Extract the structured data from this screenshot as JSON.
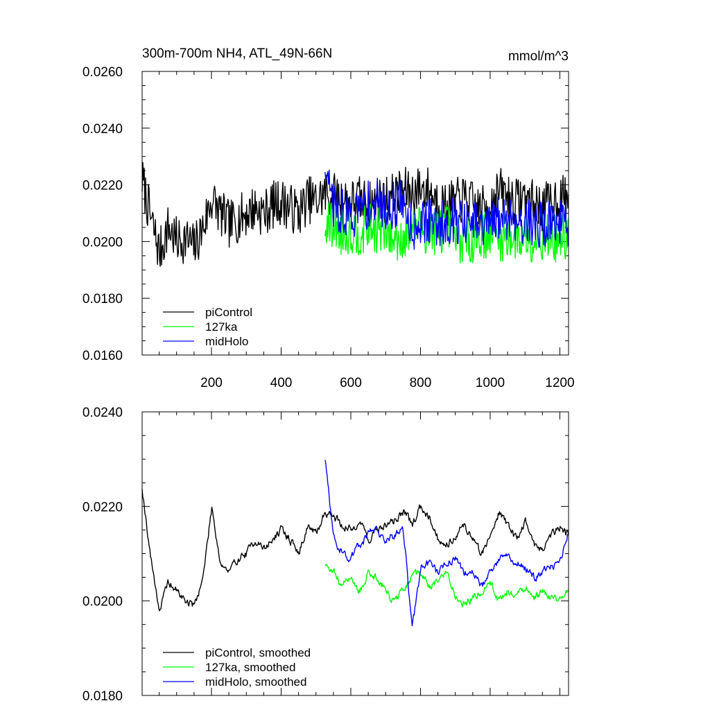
{
  "chart_data": [
    {
      "type": "line",
      "title": "300m-700m NH4, ATL_49N-66N",
      "units": "mmol/m^3",
      "xlabel": "",
      "ylabel": "",
      "xlim": [
        1,
        1225
      ],
      "ylim": [
        0.016,
        0.026
      ],
      "xticks": [
        200,
        400,
        600,
        800,
        1000,
        1200
      ],
      "xtick_labels": [
        "200",
        "400",
        "600",
        "800",
        "1000",
        "1200"
      ],
      "yticks": [
        0.016,
        0.018,
        0.02,
        0.022,
        0.024,
        0.026
      ],
      "ytick_labels": [
        "0.0160",
        "0.0180",
        "0.0200",
        "0.0220",
        "0.0240",
        "0.0260"
      ],
      "legend_position": "bottom-left",
      "series": [
        {
          "name": "piControl",
          "color": "#000000",
          "x_start": 1,
          "x_step": 25,
          "values": [
            0.0222,
            0.0208,
            0.0196,
            0.0205,
            0.02,
            0.0201,
            0.0198,
            0.0205,
            0.0215,
            0.021,
            0.0206,
            0.0208,
            0.021,
            0.0212,
            0.021,
            0.0213,
            0.0214,
            0.0212,
            0.021,
            0.0215,
            0.0214,
            0.0217,
            0.0216,
            0.0215,
            0.0214,
            0.0215,
            0.0213,
            0.0214,
            0.0215,
            0.0216,
            0.0218,
            0.0217,
            0.0219,
            0.0218,
            0.0214,
            0.0212,
            0.0214,
            0.0215,
            0.0213,
            0.0211,
            0.0214,
            0.0218,
            0.0216,
            0.0214,
            0.0216,
            0.0213,
            0.0212,
            0.0214,
            0.0216,
            0.0214
          ]
        },
        {
          "name": "127ka",
          "color": "#00ff00",
          "x_start": 526,
          "x_step": 25,
          "values": [
            0.0205,
            0.0206,
            0.0203,
            0.0204,
            0.0203,
            0.0205,
            0.0204,
            0.0203,
            0.0201,
            0.0202,
            0.0204,
            0.0205,
            0.0203,
            0.0204,
            0.0205,
            0.0202,
            0.02,
            0.0201,
            0.0202,
            0.0203,
            0.0201,
            0.0202,
            0.0201,
            0.0202,
            0.0201,
            0.0202,
            0.0201,
            0.0201,
            0.0202
          ]
        },
        {
          "name": "midHolo",
          "color": "#0000ff",
          "x_start": 526,
          "x_step": 25,
          "values": [
            0.0225,
            0.0212,
            0.021,
            0.0209,
            0.0211,
            0.0213,
            0.0214,
            0.0212,
            0.0213,
            0.0214,
            0.0205,
            0.0207,
            0.0207,
            0.0206,
            0.0207,
            0.0208,
            0.0206,
            0.0206,
            0.0205,
            0.0206,
            0.0208,
            0.0209,
            0.0208,
            0.0207,
            0.0206,
            0.0206,
            0.0207,
            0.0207,
            0.0206
          ]
        }
      ]
    },
    {
      "type": "line",
      "title": "",
      "xlabel": "",
      "ylabel": "",
      "xlim": [
        1,
        1225
      ],
      "ylim": [
        0.018,
        0.024
      ],
      "xticks": [
        200,
        400,
        600,
        800,
        1000,
        1200
      ],
      "yticks": [
        0.018,
        0.02,
        0.022,
        0.024
      ],
      "ytick_labels": [
        "0.0180",
        "0.0200",
        "0.0220",
        "0.0240"
      ],
      "legend_position": "bottom-left",
      "series": [
        {
          "name": "piControl, smoothed",
          "color": "#000000",
          "x_start": 1,
          "x_step": 25,
          "values": [
            0.0224,
            0.0209,
            0.0198,
            0.0204,
            0.0202,
            0.02,
            0.0199,
            0.0205,
            0.022,
            0.0208,
            0.0206,
            0.0209,
            0.021,
            0.0213,
            0.0211,
            0.0213,
            0.0215,
            0.0213,
            0.021,
            0.0216,
            0.0214,
            0.0219,
            0.0218,
            0.0216,
            0.0215,
            0.0217,
            0.0213,
            0.0215,
            0.0216,
            0.0217,
            0.0219,
            0.0216,
            0.022,
            0.0218,
            0.0213,
            0.0212,
            0.0214,
            0.0216,
            0.0213,
            0.021,
            0.0214,
            0.0219,
            0.0216,
            0.0213,
            0.0217,
            0.0212,
            0.0211,
            0.0214,
            0.0216,
            0.0214
          ]
        },
        {
          "name": "127ka, smoothed",
          "color": "#00ff00",
          "x_start": 526,
          "x_step": 25,
          "values": [
            0.0208,
            0.0206,
            0.0203,
            0.0205,
            0.0202,
            0.0206,
            0.0205,
            0.0202,
            0.02,
            0.0202,
            0.0205,
            0.0206,
            0.0203,
            0.0204,
            0.0206,
            0.0201,
            0.0199,
            0.0201,
            0.0202,
            0.0204,
            0.02,
            0.0202,
            0.0201,
            0.0203,
            0.02,
            0.0202,
            0.0201,
            0.02,
            0.0203
          ]
        },
        {
          "name": "midHolo, smoothed",
          "color": "#0000ff",
          "x_start": 526,
          "x_step": 25,
          "values": [
            0.023,
            0.0213,
            0.021,
            0.0209,
            0.0212,
            0.0214,
            0.0215,
            0.0212,
            0.0214,
            0.0215,
            0.0194,
            0.0207,
            0.0208,
            0.0206,
            0.0208,
            0.0209,
            0.0206,
            0.0206,
            0.0203,
            0.0206,
            0.0209,
            0.021,
            0.0208,
            0.0207,
            0.0205,
            0.0206,
            0.0207,
            0.0208,
            0.0215
          ]
        }
      ]
    }
  ]
}
